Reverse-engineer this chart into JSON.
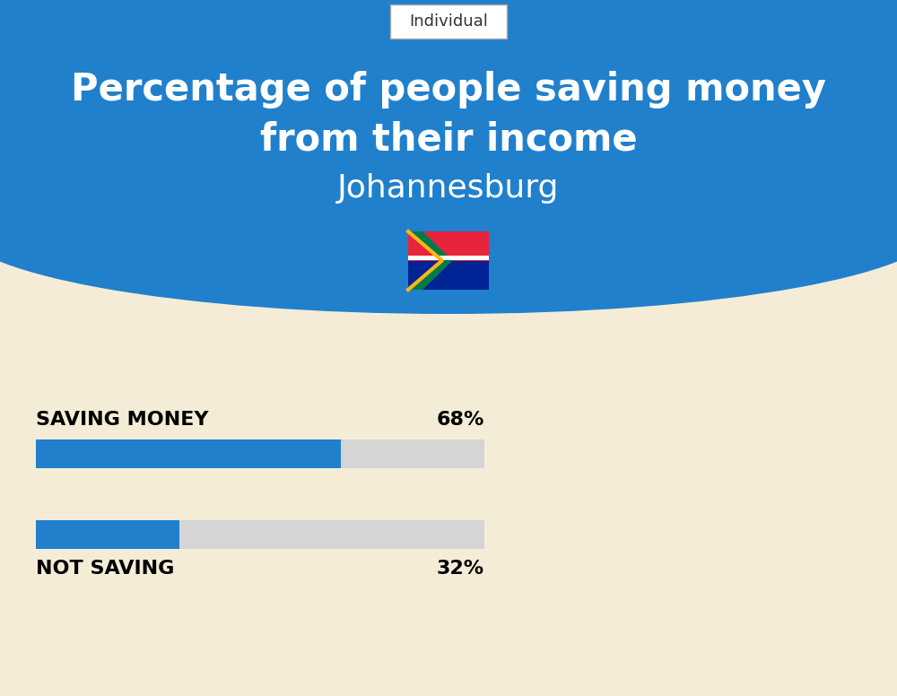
{
  "title_line1": "Percentage of people saving money",
  "title_line2": "from their income",
  "subtitle": "Johannesburg",
  "tab_label": "Individual",
  "bg_color": "#F5ECD7",
  "header_color": "#2080CC",
  "bar_color": "#2080CC",
  "bar_bg_color": "#D5D5D5",
  "categories": [
    "SAVING MONEY",
    "NOT SAVING"
  ],
  "values": [
    68,
    32
  ],
  "bar_label_color": "#000000",
  "figure_width": 10.0,
  "figure_height": 7.76,
  "dpi": 100
}
